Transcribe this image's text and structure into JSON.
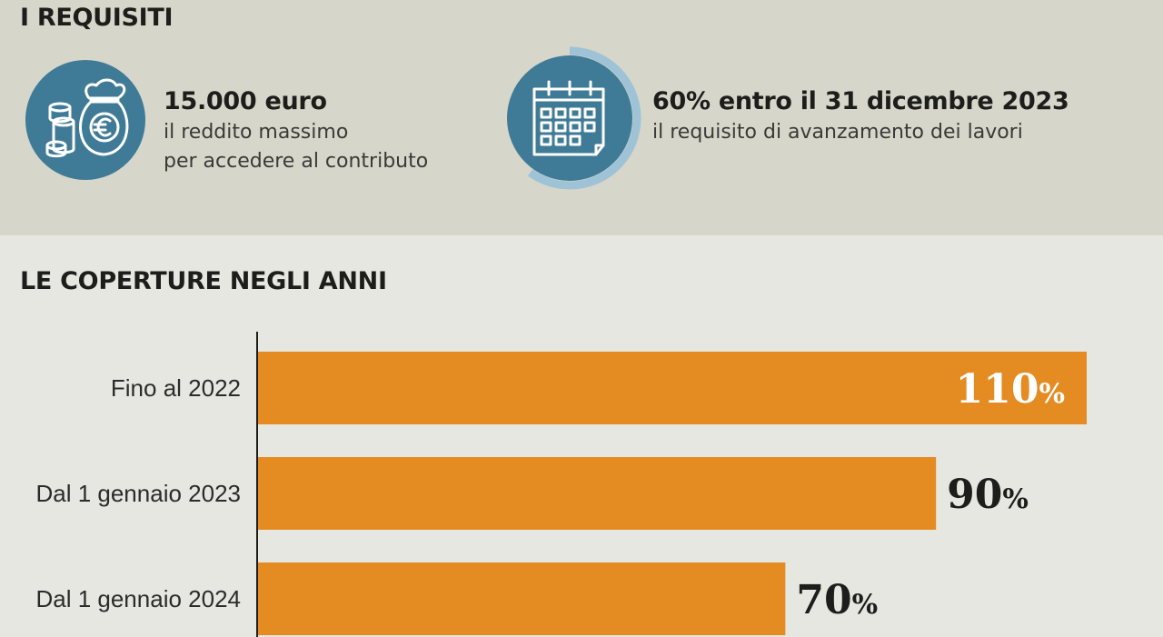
{
  "requisiti": {
    "title": "I REQUISITI",
    "items": [
      {
        "icon": "money-bag-euro-icon",
        "value": "15.000 euro",
        "desc_line1": "il reddito massimo",
        "desc_line2": "per accedere al contributo"
      },
      {
        "icon": "calendar-icon",
        "value": "60% entro il 31 dicembre 2023",
        "desc_line1": "il requisito di avanzamento dei lavori",
        "progress_percent": 60
      }
    ]
  },
  "coperture": {
    "title": "LE COPERTURE NEGLI ANNI"
  },
  "colors": {
    "bar": "#e48b22",
    "icon_circle": "#3f7b96",
    "icon_ring": "#9fc3d6",
    "top_background": "#d6d6ca",
    "bottom_background": "#e7e7e1",
    "text_dark": "#1d1d1b"
  },
  "chart_data": {
    "type": "bar",
    "orientation": "horizontal",
    "categories": [
      "Fino al 2022",
      "Dal 1 gennaio 2023",
      "Dal 1 gennaio 2024"
    ],
    "values": [
      110,
      90,
      70
    ],
    "value_labels": [
      "110",
      "90",
      "70"
    ],
    "unit": "%",
    "xlim": [
      0,
      110
    ],
    "grid": false,
    "title": "LE COPERTURE NEGLI ANNI"
  }
}
